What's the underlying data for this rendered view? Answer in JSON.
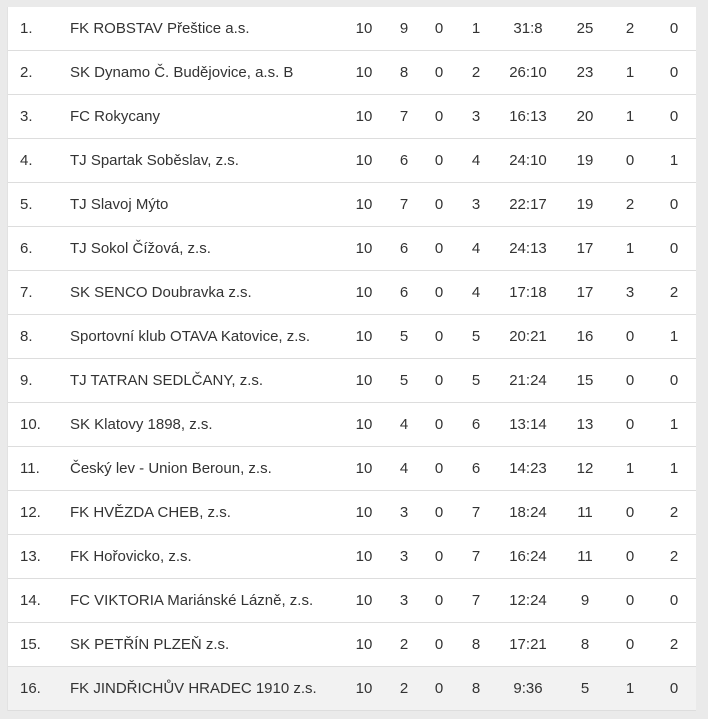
{
  "standings": {
    "rows": [
      {
        "rank": "1.",
        "team": "FK ROBSTAV Přeštice a.s.",
        "played": "10",
        "wins": "9",
        "draws": "0",
        "losses": "1",
        "score": "31:8",
        "points": "25",
        "extra1": "2",
        "extra2": "0"
      },
      {
        "rank": "2.",
        "team": "SK Dynamo Č. Budějovice, a.s. B",
        "played": "10",
        "wins": "8",
        "draws": "0",
        "losses": "2",
        "score": "26:10",
        "points": "23",
        "extra1": "1",
        "extra2": "0"
      },
      {
        "rank": "3.",
        "team": "FC Rokycany",
        "played": "10",
        "wins": "7",
        "draws": "0",
        "losses": "3",
        "score": "16:13",
        "points": "20",
        "extra1": "1",
        "extra2": "0"
      },
      {
        "rank": "4.",
        "team": "TJ Spartak Soběslav, z.s.",
        "played": "10",
        "wins": "6",
        "draws": "0",
        "losses": "4",
        "score": "24:10",
        "points": "19",
        "extra1": "0",
        "extra2": "1"
      },
      {
        "rank": "5.",
        "team": "TJ Slavoj Mýto",
        "played": "10",
        "wins": "7",
        "draws": "0",
        "losses": "3",
        "score": "22:17",
        "points": "19",
        "extra1": "2",
        "extra2": "0"
      },
      {
        "rank": "6.",
        "team": "TJ Sokol Čížová, z.s.",
        "played": "10",
        "wins": "6",
        "draws": "0",
        "losses": "4",
        "score": "24:13",
        "points": "17",
        "extra1": "1",
        "extra2": "0"
      },
      {
        "rank": "7.",
        "team": "SK SENCO Doubravka z.s.",
        "played": "10",
        "wins": "6",
        "draws": "0",
        "losses": "4",
        "score": "17:18",
        "points": "17",
        "extra1": "3",
        "extra2": "2"
      },
      {
        "rank": "8.",
        "team": "Sportovní klub OTAVA Katovice, z.s.",
        "played": "10",
        "wins": "5",
        "draws": "0",
        "losses": "5",
        "score": "20:21",
        "points": "16",
        "extra1": "0",
        "extra2": "1"
      },
      {
        "rank": "9.",
        "team": "TJ TATRAN SEDLČANY, z.s.",
        "played": "10",
        "wins": "5",
        "draws": "0",
        "losses": "5",
        "score": "21:24",
        "points": "15",
        "extra1": "0",
        "extra2": "0"
      },
      {
        "rank": "10.",
        "team": "SK Klatovy 1898, z.s.",
        "played": "10",
        "wins": "4",
        "draws": "0",
        "losses": "6",
        "score": "13:14",
        "points": "13",
        "extra1": "0",
        "extra2": "1"
      },
      {
        "rank": "11.",
        "team": "Český lev - Union Beroun, z.s.",
        "played": "10",
        "wins": "4",
        "draws": "0",
        "losses": "6",
        "score": "14:23",
        "points": "12",
        "extra1": "1",
        "extra2": "1"
      },
      {
        "rank": "12.",
        "team": "FK HVĚZDA CHEB, z.s.",
        "played": "10",
        "wins": "3",
        "draws": "0",
        "losses": "7",
        "score": "18:24",
        "points": "11",
        "extra1": "0",
        "extra2": "2"
      },
      {
        "rank": "13.",
        "team": "FK Hořovicko, z.s.",
        "played": "10",
        "wins": "3",
        "draws": "0",
        "losses": "7",
        "score": "16:24",
        "points": "11",
        "extra1": "0",
        "extra2": "2"
      },
      {
        "rank": "14.",
        "team": "FC VIKTORIA Mariánské Lázně, z.s.",
        "played": "10",
        "wins": "3",
        "draws": "0",
        "losses": "7",
        "score": "12:24",
        "points": "9",
        "extra1": "0",
        "extra2": "0"
      },
      {
        "rank": "15.",
        "team": "SK PETŘÍN PLZEŇ z.s.",
        "played": "10",
        "wins": "2",
        "draws": "0",
        "losses": "8",
        "score": "17:21",
        "points": "8",
        "extra1": "0",
        "extra2": "2"
      },
      {
        "rank": "16.",
        "team": "FK JINDŘICHŮV HRADEC 1910 z.s.",
        "played": "10",
        "wins": "2",
        "draws": "0",
        "losses": "8",
        "score": "9:36",
        "points": "5",
        "extra1": "1",
        "extra2": "0"
      }
    ]
  }
}
